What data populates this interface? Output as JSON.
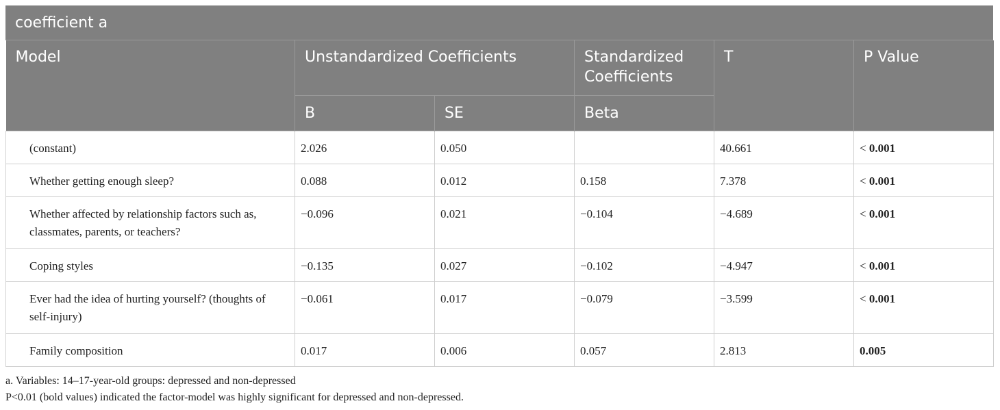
{
  "title": "coefficient a",
  "header": {
    "model": "Model",
    "unstandardized": "Unstandardized Coefficients",
    "standardized": "Standardized Coefficients",
    "b": "B",
    "se": "SE",
    "beta": "Beta",
    "t": "T",
    "p": "P Value"
  },
  "rows": [
    {
      "model": "(constant)",
      "b": "2.026",
      "se": "0.050",
      "beta": null,
      "t": "40.661",
      "p_sign": "<",
      "p": "0.001"
    },
    {
      "model": "Whether getting enough sleep?",
      "b": "0.088",
      "se": "0.012",
      "beta": "0.158",
      "t": "7.378",
      "p_sign": "<",
      "p": "0.001"
    },
    {
      "model": "Whether affected by relationship factors such as, classmates, parents, or teachers?",
      "b": "−0.096",
      "se": "0.021",
      "beta": "−0.104",
      "t": "−4.689",
      "p_sign": "<",
      "p": "0.001"
    },
    {
      "model": "Coping styles",
      "b": "−0.135",
      "se": "0.027",
      "beta": "−0.102",
      "t": "−4.947",
      "p_sign": "<",
      "p": "0.001"
    },
    {
      "model": "Ever had the idea of hurting yourself? (thoughts of self-injury)",
      "b": "−0.061",
      "se": "0.017",
      "beta": "−0.079",
      "t": "−3.599",
      "p_sign": "<",
      "p": "0.001"
    },
    {
      "model": "Family composition",
      "b": "0.017",
      "se": "0.006",
      "beta": "0.057",
      "t": "2.813",
      "p_sign": null,
      "p": "0.005"
    }
  ],
  "footnotes": [
    "a. Variables: 14–17-year-old groups: depressed and non-depressed",
    "P<0.01 (bold values) indicated the factor-model was highly significant for depressed and non-depressed."
  ]
}
